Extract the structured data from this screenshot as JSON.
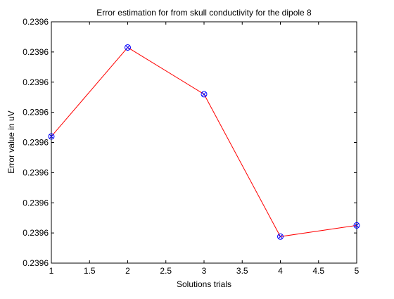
{
  "chart_data": {
    "type": "line",
    "title": "Error estimation for from skull conductivity for the dipole 8",
    "xlabel": "Solutions trials",
    "ylabel": "Error value in uV",
    "xlim": [
      1,
      5
    ],
    "ylim": [
      0,
      8
    ],
    "x_tick_values": [
      1,
      1.5,
      2,
      2.5,
      3,
      3.5,
      4,
      4.5,
      5
    ],
    "x_tick_labels": [
      "1",
      "1.5",
      "2",
      "2.5",
      "3",
      "3.5",
      "4",
      "4.5",
      "5"
    ],
    "y_tick_values": [
      0,
      1,
      2,
      3,
      4,
      5,
      6,
      7,
      8
    ],
    "y_tick_labels": [
      "0.2396",
      "0.2396",
      "0.2396",
      "0.2396",
      "0.2396",
      "0.2396",
      "0.2396",
      "0.2396",
      "0.2396"
    ],
    "grid": false,
    "legend": "none",
    "series": [
      {
        "x": [
          1,
          2,
          3,
          4,
          5
        ],
        "y": [
          4.2,
          7.15,
          5.6,
          0.88,
          1.25
        ],
        "line_color": "#ff0000",
        "marker_color": "#0000ff",
        "marker": "circle-x"
      }
    ],
    "axis_color": "#000000",
    "background": "#ffffff"
  }
}
